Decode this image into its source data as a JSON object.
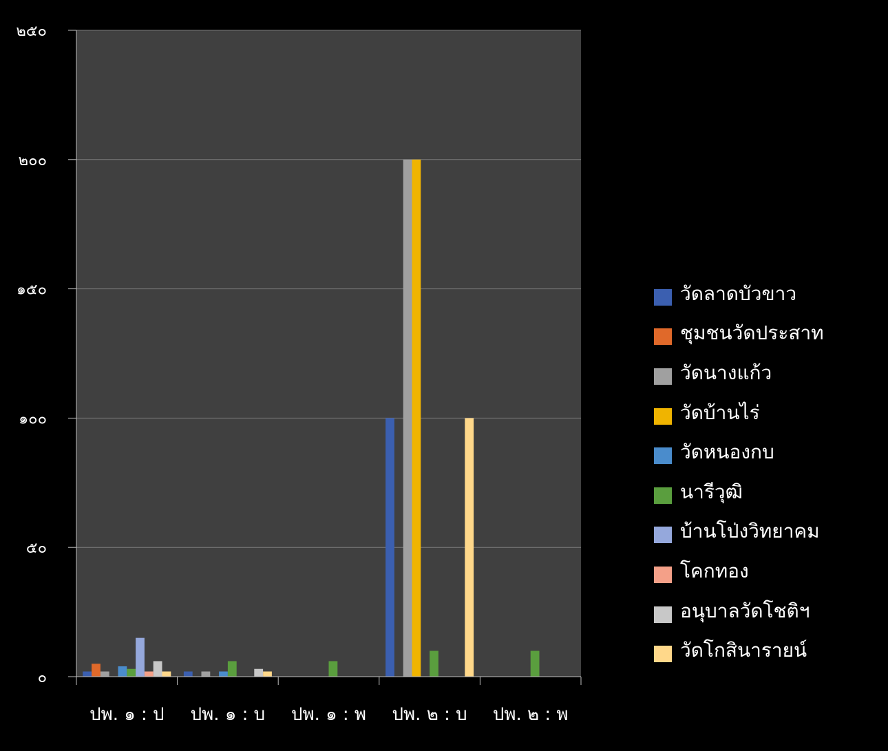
{
  "chart_data": {
    "type": "bar",
    "categories": [
      "ปพ. ๑ : ป",
      "ปพ. ๑ : บ",
      "ปพ. ๑ : พ",
      "ปพ. ๒ : บ",
      "ปพ. ๒ : พ"
    ],
    "y_ticks": [
      "๐",
      "๕๐",
      "๑๐๐",
      "๑๕๐",
      "๒๐๐",
      "๒๕๐"
    ],
    "ylim": [
      0,
      250
    ],
    "grid": true,
    "legend_position": "right",
    "series": [
      {
        "name": "วัดลาดบัวขาว",
        "color": "#3b5fb0",
        "values": [
          2,
          2,
          0,
          100,
          0
        ]
      },
      {
        "name": "ชุมชนวัดประสาท",
        "color": "#e0692a",
        "values": [
          5,
          0,
          0,
          0,
          0
        ]
      },
      {
        "name": "วัดนางแก้ว",
        "color": "#a0a0a0",
        "values": [
          2,
          2,
          0,
          200,
          0
        ]
      },
      {
        "name": "วัดบ้านไร่",
        "color": "#f0b400",
        "values": [
          0,
          0,
          0,
          200,
          0
        ]
      },
      {
        "name": "วัดหนองกบ",
        "color": "#4a8ccc",
        "values": [
          4,
          2,
          0,
          0,
          0
        ]
      },
      {
        "name": "นารีวุฒิ",
        "color": "#5a9e3e",
        "values": [
          3,
          6,
          6,
          10,
          10
        ]
      },
      {
        "name": "บ้านโป่งวิทยาคม",
        "color": "#95a8dc",
        "values": [
          15,
          0,
          0,
          0,
          0
        ]
      },
      {
        "name": "โคกทอง",
        "color": "#f4a088",
        "values": [
          2,
          0,
          0,
          0,
          0
        ]
      },
      {
        "name": "อนุบาลวัดโชติฯ",
        "color": "#c8c8c8",
        "values": [
          6,
          3,
          0,
          0,
          0
        ]
      },
      {
        "name": "วัดโกสินารายน์",
        "color": "#ffd88a",
        "values": [
          2,
          2,
          0,
          100,
          0
        ]
      }
    ]
  },
  "colors": {
    "background": "#000000",
    "plot_area": "#404040",
    "gridline": "#7a7a7a",
    "axis": "#bfbfbf",
    "text": "#ffffff"
  }
}
